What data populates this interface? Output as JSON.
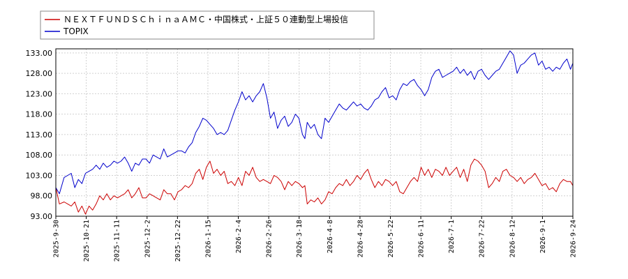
{
  "chart_data": {
    "type": "line",
    "title": "",
    "xlabel": "",
    "ylabel": "",
    "ylim": [
      93.0,
      134.0
    ],
    "yticks": [
      "133.00",
      "128.00",
      "123.00",
      "118.00",
      "113.00",
      "108.00",
      "103.00",
      "98.00",
      "93.00"
    ],
    "ytick_values": [
      133,
      128,
      123,
      118,
      113,
      108,
      103,
      98,
      93
    ],
    "xticks": [
      "2025-9-30",
      "2025-10-21",
      "2025-11-11",
      "2025-12-2",
      "2025-12-22",
      "2026-1-15",
      "2026-2-4",
      "2026-2-26",
      "2026-3-18",
      "2026-4-8",
      "2026-4-28",
      "2026-5-22",
      "2026-6-11",
      "2026-7-1",
      "2026-7-22",
      "2026-8-12",
      "2026-9-1",
      "2026-9-24"
    ],
    "grid": true,
    "legend_position": "top-left",
    "series": [
      {
        "name": "ＮＥＸＴＦＵＮＤＳＣｈｉｎａＡＭＣ・中国株式・上証５０連動型上場投信",
        "color": "#cc0000",
        "points": [
          [
            0,
            100.0
          ],
          [
            3,
            96.0
          ],
          [
            7,
            96.5
          ],
          [
            10,
            96.0
          ],
          [
            13,
            95.5
          ],
          [
            16,
            96.5
          ],
          [
            19,
            94.0
          ],
          [
            22,
            95.5
          ],
          [
            25,
            93.5
          ],
          [
            28,
            95.5
          ],
          [
            31,
            94.5
          ],
          [
            34,
            96.0
          ],
          [
            37,
            98.0
          ],
          [
            40,
            97.0
          ],
          [
            43,
            98.5
          ],
          [
            46,
            97.0
          ],
          [
            49,
            98.0
          ],
          [
            52,
            97.5
          ],
          [
            55,
            98.0
          ],
          [
            58,
            98.5
          ],
          [
            61,
            99.5
          ],
          [
            64,
            97.5
          ],
          [
            67,
            98.5
          ],
          [
            70,
            100.0
          ],
          [
            73,
            97.5
          ],
          [
            76,
            97.5
          ],
          [
            79,
            98.5
          ],
          [
            82,
            98.0
          ],
          [
            85,
            97.5
          ],
          [
            88,
            97.0
          ],
          [
            91,
            99.5
          ],
          [
            94,
            98.5
          ],
          [
            97,
            98.5
          ],
          [
            100,
            97.0
          ],
          [
            103,
            99.0
          ],
          [
            106,
            99.5
          ],
          [
            109,
            100.5
          ],
          [
            112,
            100.0
          ],
          [
            115,
            101.0
          ],
          [
            118,
            103.5
          ],
          [
            121,
            104.5
          ],
          [
            124,
            102.0
          ],
          [
            127,
            105.0
          ],
          [
            130,
            106.5
          ],
          [
            133,
            103.5
          ],
          [
            136,
            104.5
          ],
          [
            139,
            103.0
          ],
          [
            142,
            104.0
          ],
          [
            145,
            101.0
          ],
          [
            148,
            101.5
          ],
          [
            151,
            100.5
          ],
          [
            154,
            102.5
          ],
          [
            157,
            100.5
          ],
          [
            160,
            104.0
          ],
          [
            163,
            103.0
          ],
          [
            166,
            105.0
          ],
          [
            169,
            102.5
          ],
          [
            172,
            101.5
          ],
          [
            175,
            102.0
          ],
          [
            178,
            101.5
          ],
          [
            181,
            101.0
          ],
          [
            184,
            103.0
          ],
          [
            187,
            102.5
          ],
          [
            190,
            101.5
          ],
          [
            193,
            99.5
          ],
          [
            196,
            101.5
          ],
          [
            199,
            100.5
          ],
          [
            202,
            101.5
          ],
          [
            205,
            101.0
          ],
          [
            208,
            100.0
          ],
          [
            210,
            100.5
          ],
          [
            212,
            96.0
          ],
          [
            215,
            97.0
          ],
          [
            218,
            96.5
          ],
          [
            221,
            97.5
          ],
          [
            224,
            96.0
          ],
          [
            227,
            97.0
          ],
          [
            230,
            99.0
          ],
          [
            233,
            98.5
          ],
          [
            236,
            100.0
          ],
          [
            239,
            101.0
          ],
          [
            242,
            100.5
          ],
          [
            245,
            102.0
          ],
          [
            248,
            100.5
          ],
          [
            251,
            101.5
          ],
          [
            254,
            103.0
          ],
          [
            257,
            102.0
          ],
          [
            260,
            103.5
          ],
          [
            263,
            104.5
          ],
          [
            266,
            102.0
          ],
          [
            269,
            100.0
          ],
          [
            272,
            101.5
          ],
          [
            275,
            100.5
          ],
          [
            278,
            102.0
          ],
          [
            281,
            101.5
          ],
          [
            284,
            100.5
          ],
          [
            287,
            101.5
          ],
          [
            290,
            99.0
          ],
          [
            293,
            98.5
          ],
          [
            296,
            100.0
          ],
          [
            299,
            101.5
          ],
          [
            302,
            102.5
          ],
          [
            305,
            101.5
          ],
          [
            308,
            105.0
          ],
          [
            311,
            103.0
          ],
          [
            314,
            104.5
          ],
          [
            317,
            102.5
          ],
          [
            320,
            104.5
          ],
          [
            323,
            104.0
          ],
          [
            326,
            103.0
          ],
          [
            329,
            105.0
          ],
          [
            332,
            103.0
          ],
          [
            335,
            104.0
          ],
          [
            338,
            105.0
          ],
          [
            341,
            102.5
          ],
          [
            344,
            104.5
          ],
          [
            347,
            101.5
          ],
          [
            350,
            105.5
          ],
          [
            353,
            107.0
          ],
          [
            356,
            106.5
          ],
          [
            359,
            105.5
          ],
          [
            362,
            104.0
          ],
          [
            365,
            100.0
          ],
          [
            368,
            101.0
          ],
          [
            371,
            102.5
          ],
          [
            374,
            101.5
          ],
          [
            377,
            104.0
          ],
          [
            380,
            104.5
          ],
          [
            383,
            103.0
          ],
          [
            386,
            102.5
          ],
          [
            389,
            101.5
          ],
          [
            392,
            102.5
          ],
          [
            395,
            101.0
          ],
          [
            398,
            102.0
          ],
          [
            401,
            102.5
          ],
          [
            404,
            103.5
          ],
          [
            407,
            102.0
          ],
          [
            410,
            100.5
          ],
          [
            413,
            101.0
          ],
          [
            416,
            99.5
          ],
          [
            419,
            100.0
          ],
          [
            422,
            99.0
          ],
          [
            425,
            101.0
          ],
          [
            428,
            102.0
          ],
          [
            431,
            101.5
          ],
          [
            434,
            101.5
          ],
          [
            436,
            100.5
          ]
        ]
      },
      {
        "name": "TOPIX",
        "color": "#0000cc",
        "points": [
          [
            0,
            100.0
          ],
          [
            3,
            98.5
          ],
          [
            7,
            102.5
          ],
          [
            10,
            103.0
          ],
          [
            13,
            103.5
          ],
          [
            16,
            100.0
          ],
          [
            19,
            102.0
          ],
          [
            22,
            101.0
          ],
          [
            25,
            103.5
          ],
          [
            28,
            104.0
          ],
          [
            31,
            104.5
          ],
          [
            34,
            105.5
          ],
          [
            37,
            104.5
          ],
          [
            40,
            106.0
          ],
          [
            43,
            105.0
          ],
          [
            46,
            105.5
          ],
          [
            49,
            106.5
          ],
          [
            52,
            106.0
          ],
          [
            55,
            106.5
          ],
          [
            58,
            107.5
          ],
          [
            61,
            106.0
          ],
          [
            64,
            104.0
          ],
          [
            67,
            106.0
          ],
          [
            70,
            105.5
          ],
          [
            73,
            107.0
          ],
          [
            76,
            107.0
          ],
          [
            79,
            106.0
          ],
          [
            82,
            108.0
          ],
          [
            85,
            107.5
          ],
          [
            88,
            107.0
          ],
          [
            91,
            109.5
          ],
          [
            94,
            107.5
          ],
          [
            97,
            108.0
          ],
          [
            100,
            108.5
          ],
          [
            103,
            109.0
          ],
          [
            106,
            109.0
          ],
          [
            109,
            108.5
          ],
          [
            112,
            110.0
          ],
          [
            115,
            111.0
          ],
          [
            118,
            113.5
          ],
          [
            121,
            115.0
          ],
          [
            124,
            117.0
          ],
          [
            127,
            116.5
          ],
          [
            130,
            115.5
          ],
          [
            133,
            114.5
          ],
          [
            136,
            113.0
          ],
          [
            139,
            113.5
          ],
          [
            142,
            113.0
          ],
          [
            145,
            114.0
          ],
          [
            148,
            116.5
          ],
          [
            151,
            119.0
          ],
          [
            154,
            121.0
          ],
          [
            157,
            123.5
          ],
          [
            160,
            121.5
          ],
          [
            163,
            122.5
          ],
          [
            166,
            121.0
          ],
          [
            169,
            122.5
          ],
          [
            172,
            123.5
          ],
          [
            175,
            125.5
          ],
          [
            178,
            122.0
          ],
          [
            181,
            117.0
          ],
          [
            184,
            118.5
          ],
          [
            187,
            114.5
          ],
          [
            190,
            116.5
          ],
          [
            193,
            117.5
          ],
          [
            196,
            115.0
          ],
          [
            199,
            116.0
          ],
          [
            202,
            118.0
          ],
          [
            205,
            117.0
          ],
          [
            208,
            113.0
          ],
          [
            210,
            112.0
          ],
          [
            212,
            116.0
          ],
          [
            215,
            114.5
          ],
          [
            218,
            115.5
          ],
          [
            221,
            113.0
          ],
          [
            224,
            112.0
          ],
          [
            227,
            117.0
          ],
          [
            230,
            116.0
          ],
          [
            233,
            117.5
          ],
          [
            236,
            119.0
          ],
          [
            239,
            120.5
          ],
          [
            242,
            119.5
          ],
          [
            245,
            119.0
          ],
          [
            248,
            120.0
          ],
          [
            251,
            121.0
          ],
          [
            254,
            120.0
          ],
          [
            257,
            120.5
          ],
          [
            260,
            119.5
          ],
          [
            263,
            119.0
          ],
          [
            266,
            120.0
          ],
          [
            269,
            121.5
          ],
          [
            272,
            122.0
          ],
          [
            275,
            123.5
          ],
          [
            278,
            124.5
          ],
          [
            281,
            122.0
          ],
          [
            284,
            122.5
          ],
          [
            287,
            121.5
          ],
          [
            290,
            124.0
          ],
          [
            293,
            125.5
          ],
          [
            296,
            125.0
          ],
          [
            299,
            126.0
          ],
          [
            302,
            126.5
          ],
          [
            305,
            125.0
          ],
          [
            308,
            124.0
          ],
          [
            311,
            122.5
          ],
          [
            314,
            124.0
          ],
          [
            317,
            127.0
          ],
          [
            320,
            128.5
          ],
          [
            323,
            129.0
          ],
          [
            326,
            127.0
          ],
          [
            329,
            127.5
          ],
          [
            332,
            128.0
          ],
          [
            335,
            128.5
          ],
          [
            338,
            129.5
          ],
          [
            341,
            128.0
          ],
          [
            344,
            129.0
          ],
          [
            347,
            127.5
          ],
          [
            350,
            128.5
          ],
          [
            353,
            126.5
          ],
          [
            356,
            128.5
          ],
          [
            359,
            129.0
          ],
          [
            362,
            127.5
          ],
          [
            365,
            126.5
          ],
          [
            368,
            127.5
          ],
          [
            371,
            128.5
          ],
          [
            374,
            129.0
          ],
          [
            377,
            130.5
          ],
          [
            380,
            132.0
          ],
          [
            383,
            133.5
          ],
          [
            386,
            132.5
          ],
          [
            389,
            128.0
          ],
          [
            392,
            130.0
          ],
          [
            395,
            130.5
          ],
          [
            398,
            131.5
          ],
          [
            401,
            132.5
          ],
          [
            404,
            133.0
          ],
          [
            407,
            130.0
          ],
          [
            410,
            131.0
          ],
          [
            413,
            129.0
          ],
          [
            416,
            129.5
          ],
          [
            419,
            128.5
          ],
          [
            422,
            129.5
          ],
          [
            425,
            129.0
          ],
          [
            428,
            130.5
          ],
          [
            431,
            131.5
          ],
          [
            434,
            129.0
          ],
          [
            436,
            130.5
          ]
        ]
      }
    ]
  }
}
